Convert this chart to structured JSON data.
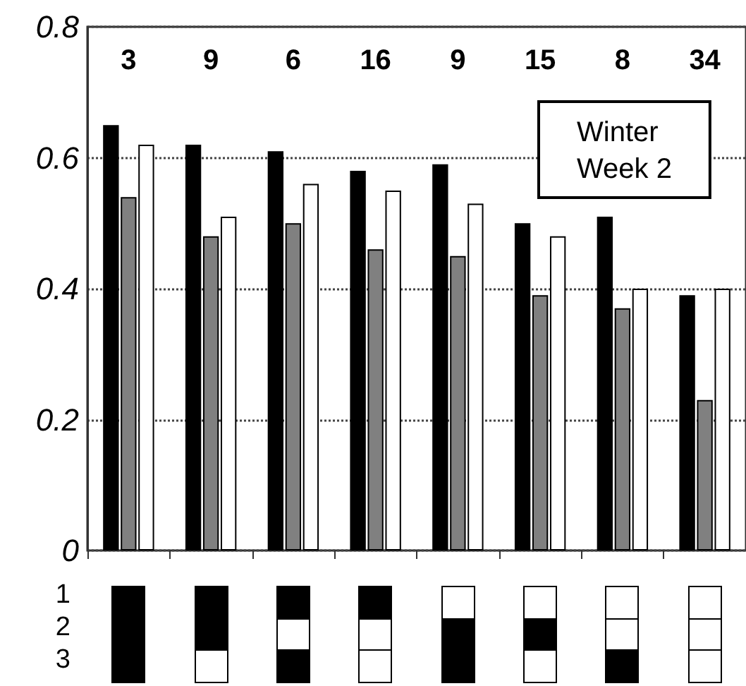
{
  "chart_data": {
    "type": "bar",
    "categories": [
      "3",
      "9",
      "6",
      "16",
      "9",
      "15",
      "8",
      "34"
    ],
    "series": [
      {
        "color": "#000000",
        "values": [
          0.65,
          0.62,
          0.61,
          0.58,
          0.59,
          0.5,
          0.51,
          0.39
        ]
      },
      {
        "color": "#808080",
        "values": [
          0.54,
          0.48,
          0.5,
          0.46,
          0.45,
          0.39,
          0.37,
          0.23
        ]
      },
      {
        "color": "#ffffff",
        "values": [
          0.62,
          0.51,
          0.56,
          0.55,
          0.53,
          0.48,
          0.4,
          0.4
        ]
      }
    ],
    "ylim": [
      0,
      0.8
    ],
    "yticks": [
      0,
      0.2,
      0.4,
      0.6,
      0.8
    ],
    "grid": "y",
    "annotations": [
      "Winter\nWeek 2",
      "1",
      "2",
      "3"
    ]
  }
}
